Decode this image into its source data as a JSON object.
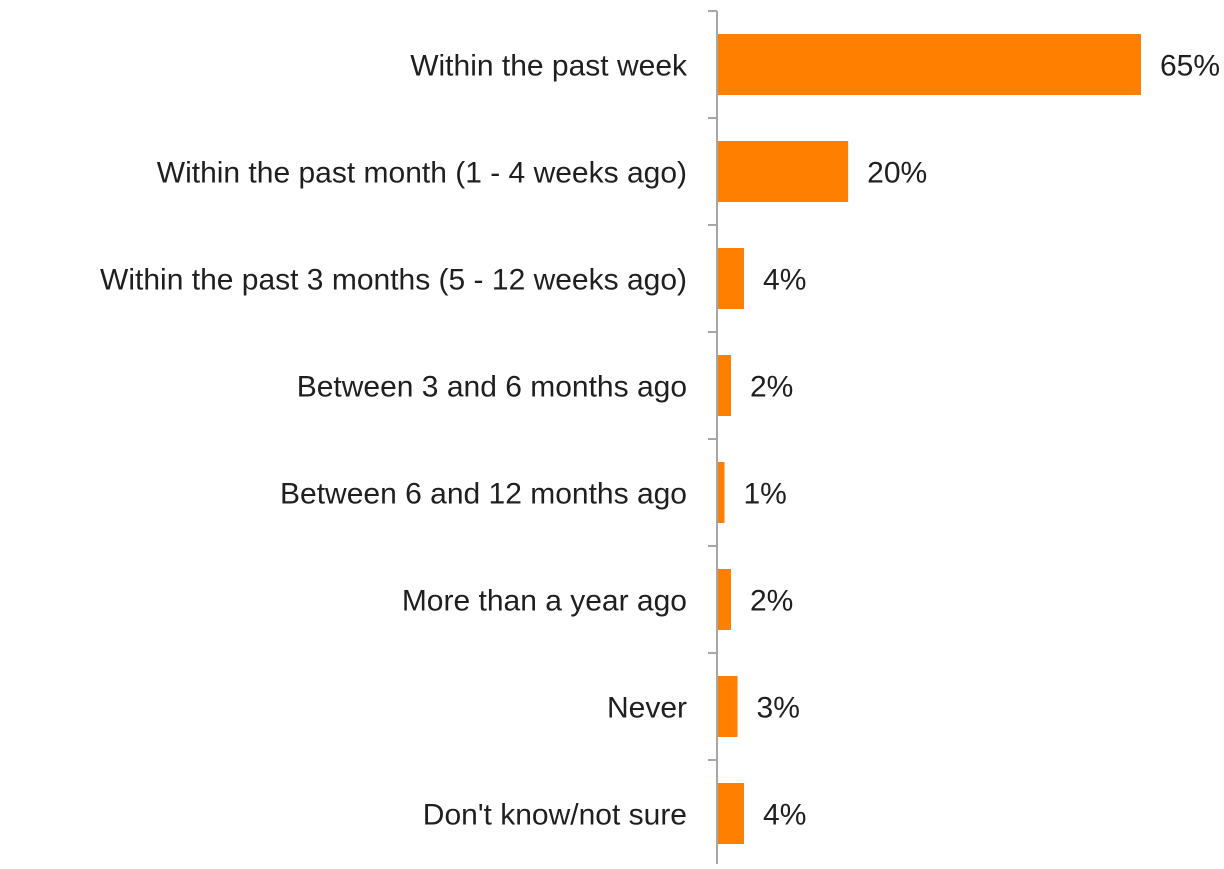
{
  "chart_data": {
    "type": "bar",
    "orientation": "horizontal",
    "title": "",
    "xlabel": "",
    "ylabel": "",
    "categories": [
      "Within the past week",
      "Within the past month (1 - 4 weeks ago)",
      "Within the past 3 months (5 - 12 weeks ago)",
      "Between 3 and 6 months ago",
      "Between 6 and 12 months ago",
      "More than a year ago",
      "Never",
      "Don't know/not sure"
    ],
    "values": [
      65,
      20,
      4,
      2,
      1,
      2,
      3,
      4
    ],
    "value_labels": [
      "65%",
      "20%",
      "4%",
      "2%",
      "1%",
      "2%",
      "3%",
      "4%"
    ],
    "unit": "%",
    "xlim": [
      0,
      65
    ],
    "grid": false,
    "legend": "none",
    "colors": {
      "bar": "#FF7F00",
      "axis": "#A6A6A6",
      "text": "#1F1F1F"
    }
  }
}
